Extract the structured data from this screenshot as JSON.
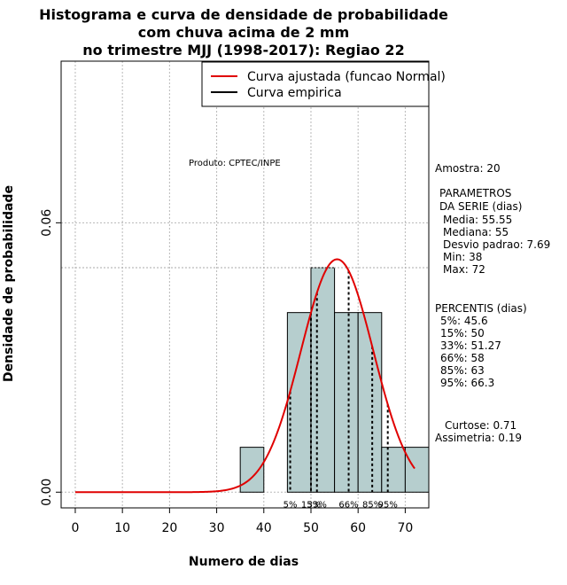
{
  "chart_data": {
    "type": "bar",
    "title_lines": [
      "Histograma e curva de densidade de probabilidade",
      "com chuva acima de 2 mm",
      "no trimestre MJJ (1998-2017): Regiao 22"
    ],
    "xlabel": "Numero de dias",
    "ylabel": "Densidade de probabilidade",
    "xlim": [
      -3,
      75
    ],
    "ylim": [
      -0.0035,
      0.096
    ],
    "x_ticks": [
      0,
      10,
      20,
      30,
      40,
      50,
      60,
      70
    ],
    "y_ticks": [
      0.0,
      0.06
    ],
    "y_tick_labels": [
      "0.00",
      "0.06"
    ],
    "grid": true,
    "bins": [
      {
        "from": 35,
        "to": 40,
        "density": 0.01
      },
      {
        "from": 40,
        "to": 45,
        "density": 0.0
      },
      {
        "from": 45,
        "to": 50,
        "density": 0.04
      },
      {
        "from": 50,
        "to": 55,
        "density": 0.05
      },
      {
        "from": 55,
        "to": 60,
        "density": 0.04
      },
      {
        "from": 60,
        "to": 65,
        "density": 0.04
      },
      {
        "from": 65,
        "to": 70,
        "density": 0.01
      },
      {
        "from": 70,
        "to": 75,
        "density": 0.01
      }
    ],
    "bar_color": "#b6cece",
    "hline_y": 0.05,
    "normal_curve": {
      "mean": 55.55,
      "sd": 7.69,
      "x_from": 0,
      "x_to": 72,
      "color": "#e00000"
    },
    "percentile_lines": [
      {
        "x": 45.6,
        "label": "5%"
      },
      {
        "x": 50,
        "label": "15%"
      },
      {
        "x": 51.27,
        "label": "33%"
      },
      {
        "x": 58,
        "label": "66%"
      },
      {
        "x": 63,
        "label": "85%"
      },
      {
        "x": 66.3,
        "label": "95%"
      }
    ],
    "legend": {
      "position": "top-right",
      "entries": [
        {
          "label": "Curva ajustada (funcao Normal)",
          "color": "#e00000"
        },
        {
          "label": "Curva empirica",
          "color": "#000000"
        }
      ]
    },
    "annotation": "Produto: CPTEC/INPE",
    "side_panel": {
      "sample": "Amostra: 20",
      "params_title_1": "PARAMETROS",
      "params_title_2": "DA SERIE (dias)",
      "mean": "Media: 55.55",
      "median": "Mediana: 55",
      "sd": "Desvio padrao: 7.69",
      "min": "Min: 38",
      "max": "Max: 72",
      "pct_title": "PERCENTIS (dias)",
      "p5": "5%: 45.6",
      "p15": "15%: 50",
      "p33": "33%: 51.27",
      "p66": "66%: 58",
      "p85": "85%: 63",
      "p95": "95%: 66.3",
      "kurtosis": "Curtose: 0.71",
      "skewness": "Assimetria: 0.19"
    }
  }
}
